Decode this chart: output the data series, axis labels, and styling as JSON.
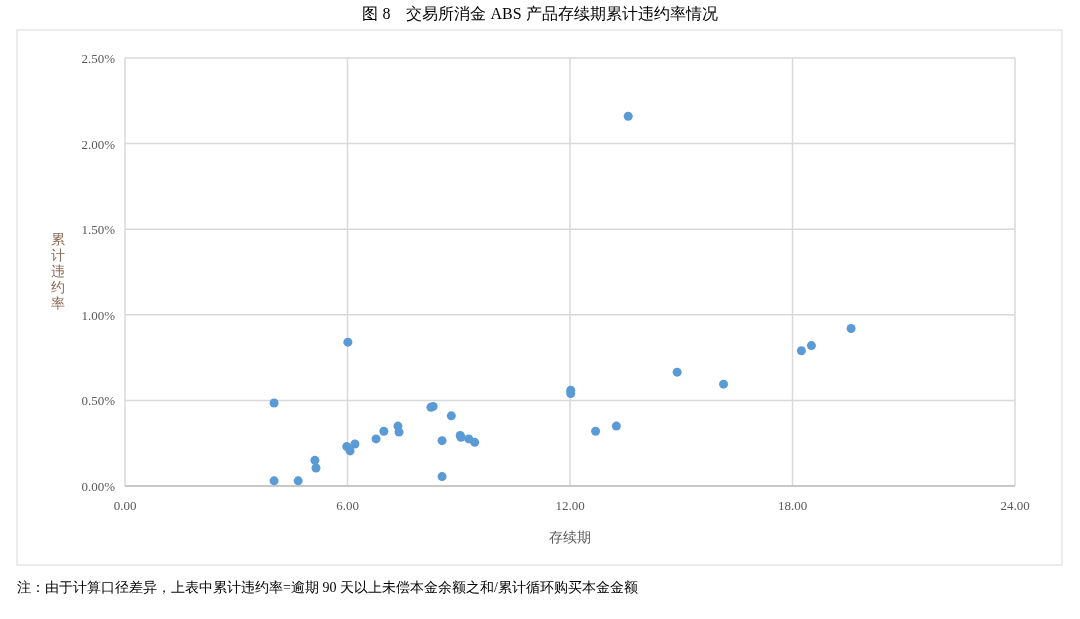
{
  "chart_data": {
    "type": "scatter",
    "title": "图 8　交易所消金 ABS 产品存续期累计违约率情况",
    "xlabel": "存续期",
    "ylabel": "累计违约率",
    "annotations": [
      "注：由于计算口径差异，上表中累计违约率=逾期 90 天以上未偿本金余额之和/累计循环购买本金金额"
    ],
    "series": [
      {
        "color": "#5b9bd5",
        "x": [
          4.02,
          4.02,
          4.67,
          5.12,
          5.15,
          6.01,
          5.98,
          6.07,
          6.2,
          6.77,
          6.98,
          7.36,
          7.39,
          8.25,
          8.31,
          8.8,
          8.55,
          8.55,
          9.04,
          9.06,
          9.27,
          9.43,
          12.02,
          12.02,
          12.69,
          13.25,
          13.57,
          14.89,
          16.14,
          18.24,
          18.51,
          19.58
        ],
        "values": [
          0.485,
          0.03,
          0.03,
          0.15,
          0.105,
          0.84,
          0.23,
          0.205,
          0.245,
          0.275,
          0.32,
          0.35,
          0.315,
          0.46,
          0.465,
          0.41,
          0.265,
          0.055,
          0.295,
          0.285,
          0.275,
          0.255,
          0.56,
          0.54,
          0.32,
          0.35,
          2.16,
          0.665,
          0.595,
          0.79,
          0.82,
          0.92
        ]
      }
    ],
    "xlim": [
      0,
      24
    ],
    "ylim": [
      0,
      2.5
    ],
    "xticks": [
      {
        "value": 0,
        "label": "0.00"
      },
      {
        "value": 6,
        "label": "6.00"
      },
      {
        "value": 12,
        "label": "12.00"
      },
      {
        "value": 18,
        "label": "18.00"
      },
      {
        "value": 24,
        "label": "24.00"
      }
    ],
    "yticks": [
      {
        "value": 0,
        "label": "0.00%"
      },
      {
        "value": 0.5,
        "label": "0.50%"
      },
      {
        "value": 1,
        "label": "1.00%"
      },
      {
        "value": 1.5,
        "label": "1.50%"
      },
      {
        "value": 2,
        "label": "2.00%"
      },
      {
        "value": 2.5,
        "label": "2.50%"
      }
    ],
    "grid": true,
    "marker": "circle"
  }
}
